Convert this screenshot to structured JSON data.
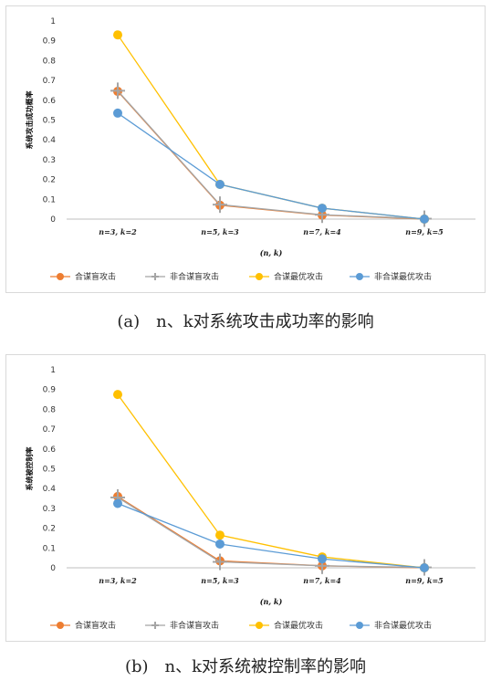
{
  "charts": [
    {
      "id": "a",
      "caption": "(a)　n、k对系统攻击成功率的影响",
      "ylabel": "系统攻击成功概率",
      "xlabel": "(n, k)"
    },
    {
      "id": "b",
      "caption": "(b)　n、k对系统被控制率的影响",
      "ylabel": "系统被控制率",
      "xlabel": "(n, k)"
    }
  ],
  "colors": {
    "series1": "#ed7d31",
    "series2": "#a5a5a5",
    "series3": "#ffc000",
    "series4": "#5b9bd5",
    "grid": "#e5e5e5",
    "axis": "#bfbfbf"
  },
  "chart_data": [
    {
      "type": "line",
      "categories": [
        "n=3, k=2",
        "n=5, k=3",
        "n=7, k=4",
        "n=9, k=5"
      ],
      "ylim": [
        0,
        1
      ],
      "yticks": [
        "0",
        "0.1",
        "0.2",
        "0.3",
        "0.4",
        "0.5",
        "0.6",
        "0.7",
        "0.8",
        "0.9",
        "1"
      ],
      "xlabel": "(n, k)",
      "ylabel": "系统攻击成功概率",
      "grid": false,
      "legend": "bottom",
      "series": [
        {
          "name": "合谋盲攻击",
          "values": [
            0.645,
            0.07,
            0.02,
            0.0
          ],
          "marker": "circle"
        },
        {
          "name": "非合谋盲攻击",
          "values": [
            0.648,
            0.073,
            0.022,
            0.002
          ],
          "marker": "cross"
        },
        {
          "name": "合谋最优攻击",
          "values": [
            0.93,
            0.175,
            0.055,
            0.0
          ],
          "marker": "circle"
        },
        {
          "name": "非合谋最优攻击",
          "values": [
            0.535,
            0.175,
            0.055,
            0.0
          ],
          "marker": "circle"
        }
      ]
    },
    {
      "type": "line",
      "categories": [
        "n=3, k=2",
        "n=5, k=3",
        "n=7, k=4",
        "n=9, k=5"
      ],
      "ylim": [
        0,
        1
      ],
      "yticks": [
        "0",
        "0.1",
        "0.2",
        "0.3",
        "0.4",
        "0.5",
        "0.6",
        "0.7",
        "0.8",
        "0.9",
        "1"
      ],
      "xlabel": "(n, k)",
      "ylabel": "系统被控制率",
      "grid": false,
      "legend": "bottom",
      "series": [
        {
          "name": "合谋盲攻击",
          "values": [
            0.36,
            0.035,
            0.01,
            0.0
          ],
          "marker": "circle"
        },
        {
          "name": "非合谋盲攻击",
          "values": [
            0.355,
            0.03,
            0.01,
            0.002
          ],
          "marker": "cross"
        },
        {
          "name": "合谋最优攻击",
          "values": [
            0.875,
            0.165,
            0.055,
            0.0
          ],
          "marker": "circle"
        },
        {
          "name": "非合谋最优攻击",
          "values": [
            0.325,
            0.12,
            0.045,
            0.0
          ],
          "marker": "circle"
        }
      ]
    }
  ]
}
